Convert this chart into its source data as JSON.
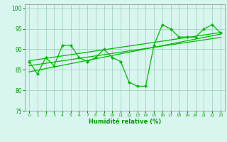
{
  "x": [
    0,
    1,
    2,
    3,
    4,
    5,
    6,
    7,
    8,
    9,
    10,
    11,
    12,
    13,
    14,
    15,
    16,
    17,
    18,
    19,
    20,
    21,
    22,
    23
  ],
  "y_main": [
    87,
    84,
    88,
    86,
    91,
    91,
    88,
    87,
    88,
    90,
    88,
    87,
    82,
    81,
    81,
    91,
    96,
    95,
    93,
    93,
    93,
    95,
    96,
    94
  ],
  "y_trend1": [
    84.5,
    84.9,
    85.3,
    85.7,
    86.1,
    86.5,
    86.9,
    87.3,
    87.7,
    88.1,
    88.5,
    88.9,
    89.3,
    89.7,
    90.1,
    90.5,
    90.9,
    91.3,
    91.7,
    92.1,
    92.5,
    92.9,
    93.3,
    93.7
  ],
  "y_trend2": [
    86.0,
    86.3,
    86.6,
    86.9,
    87.2,
    87.5,
    87.8,
    88.1,
    88.4,
    88.7,
    89.0,
    89.3,
    89.6,
    89.9,
    90.2,
    90.5,
    90.8,
    91.1,
    91.4,
    91.7,
    92.0,
    92.3,
    92.6,
    92.9
  ],
  "y_trend3": [
    87.2,
    87.5,
    87.8,
    88.1,
    88.4,
    88.7,
    89.0,
    89.3,
    89.6,
    89.9,
    90.2,
    90.5,
    90.8,
    91.1,
    91.4,
    91.7,
    92.0,
    92.3,
    92.6,
    92.9,
    93.2,
    93.5,
    93.8,
    94.1
  ],
  "line_color": "#00bb00",
  "bg_color": "#d8f5ef",
  "grid_color": "#99ccbb",
  "ylim": [
    75,
    101
  ],
  "xlim": [
    -0.5,
    23.5
  ],
  "yticks": [
    75,
    80,
    85,
    90,
    95,
    100
  ],
  "xticks": [
    0,
    1,
    2,
    3,
    4,
    5,
    6,
    7,
    8,
    9,
    10,
    11,
    12,
    13,
    14,
    15,
    16,
    17,
    18,
    19,
    20,
    21,
    22,
    23
  ],
  "xlabel": "Humidité relative (%)",
  "xlabel_color": "#009900",
  "tick_color": "#009900",
  "spine_color": "#888888"
}
